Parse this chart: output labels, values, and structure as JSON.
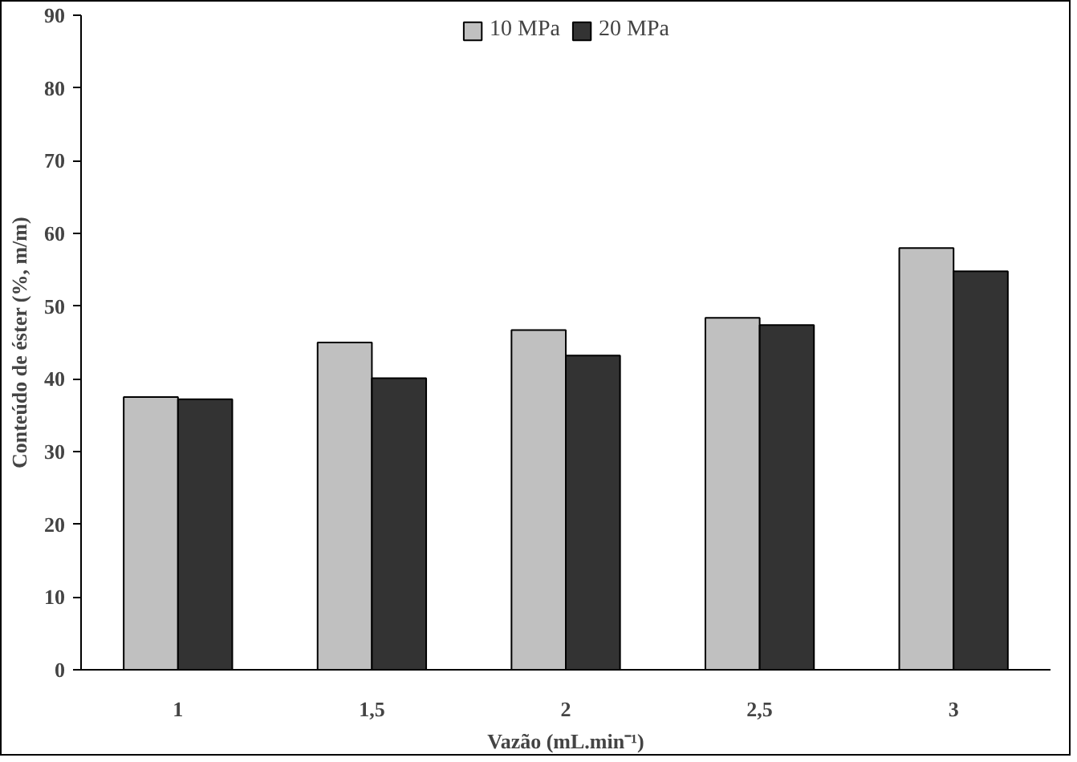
{
  "chart_data": {
    "type": "bar",
    "xlabel": "Vazão (mL.min⁻¹)",
    "ylabel": "Conteúdo de éster (%, m/m)",
    "categories": [
      "1",
      "1,5",
      "2",
      "2,5",
      "3"
    ],
    "series": [
      {
        "name": "10 MPa",
        "color": "#c0c0c0",
        "values": [
          37.5,
          45.0,
          46.7,
          48.4,
          58.0
        ]
      },
      {
        "name": "20 MPa",
        "color": "#333333",
        "values": [
          37.2,
          40.1,
          43.2,
          47.4,
          54.8
        ]
      }
    ],
    "ylim": [
      0,
      90
    ],
    "yticks": [
      0,
      10,
      20,
      30,
      40,
      50,
      60,
      70,
      80,
      90
    ],
    "grid": false,
    "legend": "top"
  }
}
